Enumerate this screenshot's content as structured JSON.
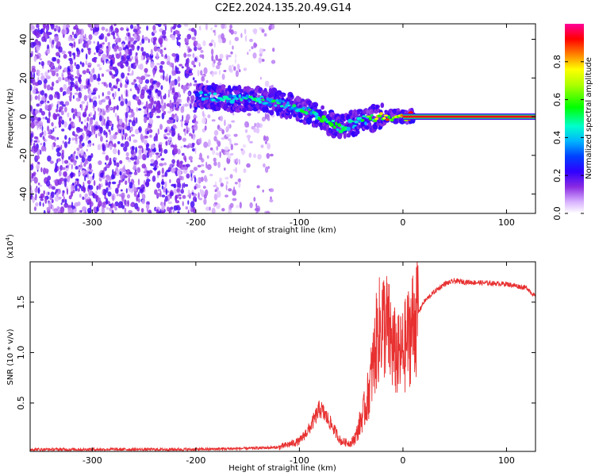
{
  "chart_data": [
    {
      "type": "heatmap",
      "title": "C2E2.2024.135.20.49.G14",
      "xlabel": "Height of straight line (km)",
      "ylabel": "Frequency (Hz)",
      "xlim": [
        -360,
        128
      ],
      "ylim": [
        -50,
        48
      ],
      "xticks": [
        -300,
        -200,
        -100,
        0,
        100
      ],
      "xticklabels": [
        "-300",
        "-200",
        "-100",
        "0",
        "100"
      ],
      "yticks": [
        -40,
        -20,
        0,
        20,
        40
      ],
      "yticklabels": [
        "-40",
        "-20",
        "0",
        "20",
        "40"
      ],
      "colorbar": {
        "label": "Normalized spectral amplitude",
        "range": [
          0,
          1
        ],
        "ticks": [
          0.0,
          0.2,
          0.4,
          0.6,
          0.8
        ],
        "ticklabels": [
          "0.0",
          "0.2",
          "0.4",
          "0.6",
          "0.8"
        ],
        "colormap": [
          "#ffffff",
          "#e8c8ff",
          "#b070ff",
          "#6a00ff",
          "#0000ff",
          "#00b4ff",
          "#00ffcc",
          "#00ff00",
          "#ffff00",
          "#ff8000",
          "#ff0000",
          "#ff0099"
        ]
      },
      "ridge": [
        {
          "x": -200,
          "f": 11,
          "a": 0.35
        },
        {
          "x": -180,
          "f": 10,
          "a": 0.4
        },
        {
          "x": -160,
          "f": 9,
          "a": 0.4
        },
        {
          "x": -140,
          "f": 9,
          "a": 0.45
        },
        {
          "x": -120,
          "f": 7,
          "a": 0.45
        },
        {
          "x": -100,
          "f": 4,
          "a": 0.45
        },
        {
          "x": -80,
          "f": 0,
          "a": 0.5
        },
        {
          "x": -60,
          "f": -6,
          "a": 0.5
        },
        {
          "x": -40,
          "f": -2,
          "a": 0.45
        },
        {
          "x": -20,
          "f": 0,
          "a": 0.75
        },
        {
          "x": 0,
          "f": 0,
          "a": 0.8
        },
        {
          "x": 20,
          "f": 0,
          "a": 0.95
        },
        {
          "x": 128,
          "f": 0,
          "a": 0.95
        }
      ]
    },
    {
      "type": "line",
      "xlabel": "Height of straight line (km)",
      "ylabel": "SNR (10 * v/v)",
      "scale_label": "(x10",
      "scale_exponent": "4",
      "scale_suffix": ")",
      "xlim": [
        -360,
        128
      ],
      "ylim": [
        0.02,
        1.9
      ],
      "xticks": [
        -300,
        -200,
        -100,
        0,
        100
      ],
      "xticklabels": [
        "-300",
        "-200",
        "-100",
        "0",
        "100"
      ],
      "yticks": [
        0.5,
        1.0,
        1.5
      ],
      "yticklabels": [
        "0.5",
        "1.0",
        "1.5"
      ],
      "series": [
        {
          "name": "SNR",
          "color": "#e83030",
          "x": [
            -360,
            -300,
            -250,
            -200,
            -150,
            -120,
            -100,
            -90,
            -80,
            -70,
            -60,
            -50,
            -45,
            -40,
            -35,
            -30,
            -25,
            -20,
            -15,
            -10,
            -5,
            0,
            10,
            20,
            30,
            40,
            50,
            60,
            80,
            100,
            120,
            128
          ],
          "y": [
            0.04,
            0.04,
            0.04,
            0.04,
            0.05,
            0.06,
            0.12,
            0.25,
            0.45,
            0.3,
            0.12,
            0.1,
            0.18,
            0.35,
            0.5,
            0.8,
            1.15,
            1.3,
            1.25,
            1.05,
            0.95,
            1.0,
            1.3,
            1.5,
            1.6,
            1.68,
            1.71,
            1.7,
            1.69,
            1.68,
            1.64,
            1.55
          ]
        }
      ]
    }
  ]
}
